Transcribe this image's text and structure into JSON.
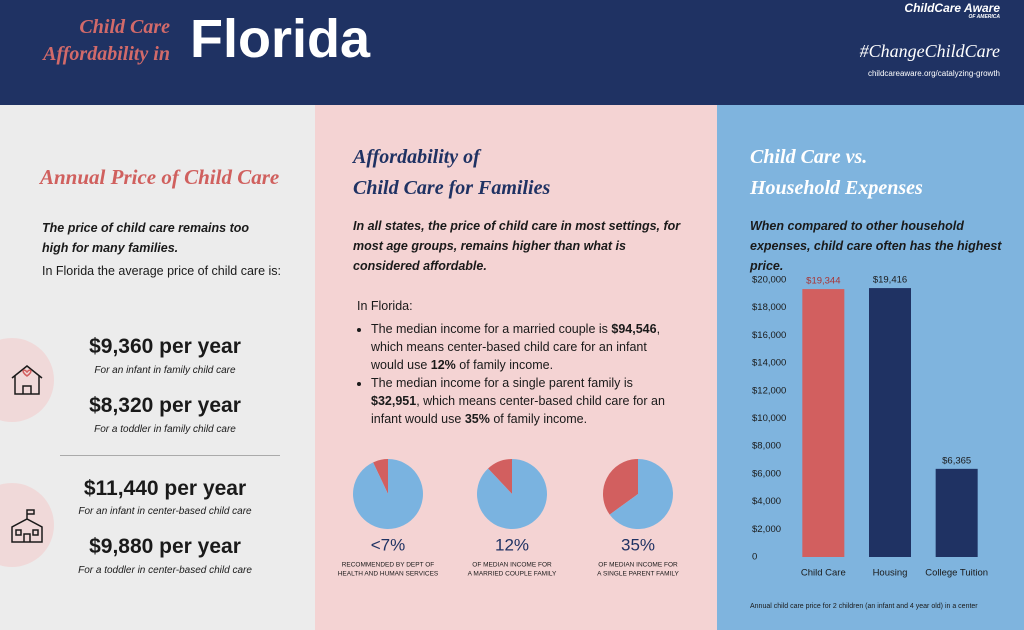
{
  "header": {
    "title_small": [
      "Child Care",
      "Affordability in"
    ],
    "title": "Florida",
    "logo": [
      "ChildCare Aware",
      "OF AMERICA"
    ],
    "hashtag": "#ChangeChildCare",
    "url": "childcareaware.org/catalyzing-growth"
  },
  "left": {
    "heading": "Annual Price of Child Care",
    "intro": "The price of child care remains too high for many families.",
    "text": "In Florida the average price of child care is:",
    "items": [
      {
        "price": "$9,360 per year",
        "desc": "For an infant in family child care"
      },
      {
        "price": "$8,320 per year",
        "desc": "For a toddler in family child care"
      },
      {
        "price": "$11,440 per year",
        "desc": "For an infant in center-based child care"
      },
      {
        "price": "$9,880 per year",
        "desc": "For a toddler in center-based child care"
      }
    ]
  },
  "middle": {
    "heading": [
      "Affordability of",
      "Child Care for Families"
    ],
    "intro": "In all states, the price of child care in most settings, for most age groups, remains higher than what is considered affordable.",
    "lead": "In Florida:",
    "bullets": [
      [
        "The median income for a married couple is ",
        "$94,546",
        ", which means center-based child care for an infant would use ",
        "12%",
        " of family income."
      ],
      [
        "The median income for a single parent family is ",
        "$32,951",
        ", which means center-based child care for an infant would use ",
        "35%",
        " of family income."
      ]
    ]
  },
  "right": {
    "heading": [
      "Child Care vs.",
      "Household Expenses"
    ],
    "intro": "When compared to other household expenses, child care often has the highest price."
  },
  "chart_data": [
    {
      "type": "bar",
      "categories": [
        "Child Care",
        "Housing",
        "College Tuition"
      ],
      "values": [
        19344,
        19416,
        6365
      ],
      "value_labels": [
        "$19,344",
        "$19,416",
        "$6,365"
      ],
      "colors": [
        "#d25f5f",
        "#1f3263",
        "#1f3263"
      ],
      "ylim": [
        0,
        20000
      ],
      "yticks": [
        0,
        {
          "value": 2000,
          "label": "$2,000"
        },
        {
          "value": 4000,
          "label": "$4,000"
        },
        {
          "value": 6000,
          "label": "$6,000"
        },
        {
          "value": 8000,
          "label": "$8,000"
        },
        {
          "value": 10000,
          "label": "$10,000"
        },
        {
          "value": 12000,
          "label": "$12,000"
        },
        {
          "value": 14000,
          "label": "$14,000"
        },
        {
          "value": 16000,
          "label": "$16,000"
        },
        {
          "value": 18000,
          "label": "$18,000"
        },
        {
          "value": 20000,
          "label": "$20,000"
        }
      ],
      "grid": false,
      "annotation": "Annual child care price for 2 children (an infant and 4 year old) in a center"
    },
    {
      "type": "pie",
      "values": [
        7,
        93
      ],
      "value_labels": [
        "<7%",
        null
      ],
      "colors": [
        "#d25f5f",
        "#7ab3e0"
      ],
      "subtitle": [
        "RECOMMENDED BY DEPT OF",
        "HEALTH AND HUMAN SERVICES"
      ]
    },
    {
      "type": "pie",
      "values": [
        12,
        88
      ],
      "value_labels": [
        "12%",
        null
      ],
      "colors": [
        "#d25f5f",
        "#7ab3e0"
      ],
      "subtitle": [
        "OF MEDIAN INCOME FOR",
        "A MARRIED COUPLE FAMILY"
      ]
    },
    {
      "type": "pie",
      "values": [
        35,
        65
      ],
      "value_labels": [
        "35%",
        null
      ],
      "colors": [
        "#d25f5f",
        "#7ab3e0"
      ],
      "subtitle": [
        "OF MEDIAN INCOME FOR",
        "A SINGLE PARENT FAMILY"
      ]
    }
  ]
}
